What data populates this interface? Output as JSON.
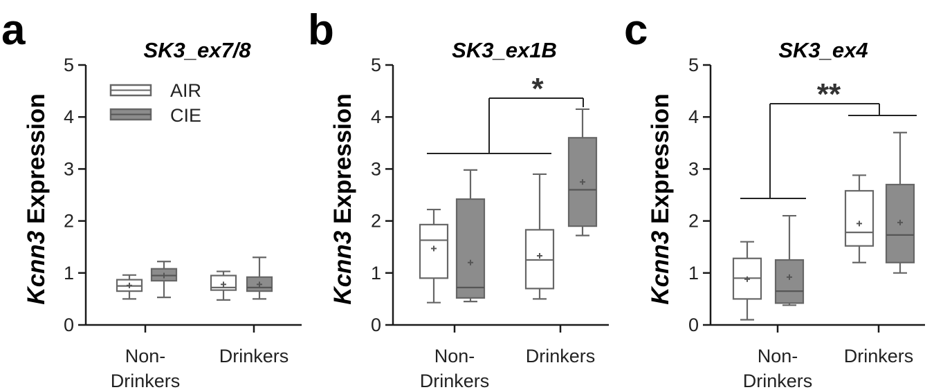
{
  "colors": {
    "air_fill": "#ffffff",
    "cie_fill": "#8c8c8c",
    "stroke": "#666666",
    "axis": "#1a1a1a",
    "mean_marker": "#555555"
  },
  "legend": {
    "items": [
      {
        "label": "AIR",
        "fill": "#ffffff"
      },
      {
        "label": "CIE",
        "fill": "#8c8c8c"
      }
    ]
  },
  "chart_data": [
    {
      "type": "box",
      "panel": "a",
      "title": "SK3_ex7/8",
      "ylabel_italic": "Kcnn3",
      "ylabel_rest": " Expression",
      "ylim": [
        0,
        5
      ],
      "yticks": [
        "0",
        "1",
        "2",
        "3",
        "4",
        "5"
      ],
      "categories": [
        "Non-Drinkers",
        "Drinkers"
      ],
      "category_lines": [
        [
          "Non-",
          "Drinkers"
        ],
        [
          "Drinkers"
        ]
      ],
      "series": [
        {
          "name": "AIR",
          "boxes": [
            {
              "min": 0.5,
              "q1": 0.65,
              "median": 0.75,
              "q3": 0.87,
              "max": 0.96,
              "mean": 0.76
            },
            {
              "min": 0.48,
              "q1": 0.67,
              "median": 0.72,
              "q3": 0.95,
              "max": 1.03,
              "mean": 0.78
            }
          ]
        },
        {
          "name": "CIE",
          "boxes": [
            {
              "min": 0.53,
              "q1": 0.85,
              "median": 0.95,
              "q3": 1.08,
              "max": 1.22,
              "mean": 0.95
            },
            {
              "min": 0.5,
              "q1": 0.65,
              "median": 0.72,
              "q3": 0.92,
              "max": 1.3,
              "mean": 0.78
            }
          ]
        }
      ],
      "annotations": []
    },
    {
      "type": "box",
      "panel": "b",
      "title": "SK3_ex1B",
      "ylabel_italic": "Kcnn3",
      "ylabel_rest": " Expression",
      "ylim": [
        0,
        5
      ],
      "yticks": [
        "0",
        "1",
        "2",
        "3",
        "4",
        "5"
      ],
      "categories": [
        "Non-Drinkers",
        "Drinkers"
      ],
      "category_lines": [
        [
          "Non-",
          "Drinkers"
        ],
        [
          "Drinkers"
        ]
      ],
      "series": [
        {
          "name": "AIR",
          "boxes": [
            {
              "min": 0.43,
              "q1": 0.9,
              "median": 1.63,
              "q3": 1.93,
              "max": 2.22,
              "mean": 1.47
            },
            {
              "min": 0.5,
              "q1": 0.7,
              "median": 1.25,
              "q3": 1.83,
              "max": 2.9,
              "mean": 1.33
            }
          ]
        },
        {
          "name": "CIE",
          "boxes": [
            {
              "min": 0.45,
              "q1": 0.52,
              "median": 0.72,
              "q3": 2.42,
              "max": 2.98,
              "mean": 1.2
            },
            {
              "min": 1.72,
              "q1": 1.9,
              "median": 2.6,
              "q3": 3.6,
              "max": 4.15,
              "mean": 2.75
            }
          ]
        }
      ],
      "annotations": [
        {
          "label": "*",
          "compare": "AIR (Non-Drinkers, Drinkers) + CIE Non-Drinkers vs CIE Drinkers"
        }
      ]
    },
    {
      "type": "box",
      "panel": "c",
      "title": "SK3_ex4",
      "ylabel_italic": "Kcnn3",
      "ylabel_rest": " Expression",
      "ylim": [
        0,
        5
      ],
      "yticks": [
        "0",
        "1",
        "2",
        "3",
        "4",
        "5"
      ],
      "categories": [
        "Non-Drinkers",
        "Drinkers"
      ],
      "category_lines": [
        [
          "Non-",
          "Drinkers"
        ],
        [
          "Drinkers"
        ]
      ],
      "series": [
        {
          "name": "AIR",
          "boxes": [
            {
              "min": 0.1,
              "q1": 0.5,
              "median": 0.9,
              "q3": 1.28,
              "max": 1.6,
              "mean": 0.88
            },
            {
              "min": 1.2,
              "q1": 1.52,
              "median": 1.78,
              "q3": 2.58,
              "max": 2.88,
              "mean": 1.95
            }
          ]
        },
        {
          "name": "CIE",
          "boxes": [
            {
              "min": 0.38,
              "q1": 0.42,
              "median": 0.65,
              "q3": 1.25,
              "max": 2.1,
              "mean": 0.92
            },
            {
              "min": 1.0,
              "q1": 1.2,
              "median": 1.73,
              "q3": 2.7,
              "max": 3.7,
              "mean": 1.97
            }
          ]
        }
      ],
      "annotations": [
        {
          "label": "**",
          "compare": "Non-Drinkers vs Drinkers"
        }
      ]
    }
  ]
}
